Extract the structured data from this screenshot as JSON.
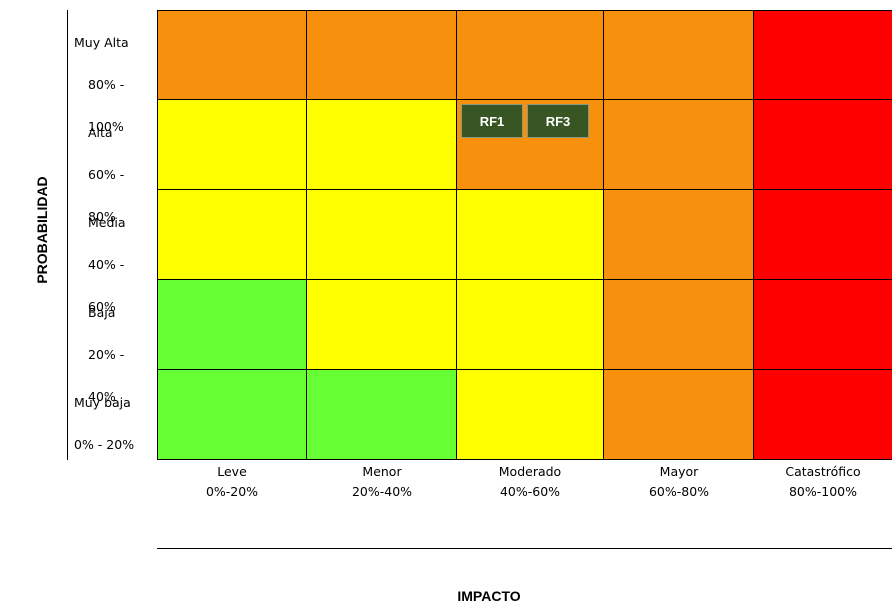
{
  "colors": {
    "green": "#66ff33",
    "yellow": "#ffff00",
    "orange": "#f7900d",
    "red": "#ff0000",
    "tag_bg": "#375623"
  },
  "axes": {
    "y_title": "PROBABILIDAD",
    "x_title": "IMPACTO"
  },
  "rows": [
    {
      "name": "Muy Alta",
      "range": "80% -",
      "range2": "100%"
    },
    {
      "name": "Alta",
      "range": "60% -",
      "range2": "80%"
    },
    {
      "name": "Media",
      "range": "40% -",
      "range2": "60%"
    },
    {
      "name": "Baja",
      "range": "20% -",
      "range2": "40%"
    },
    {
      "name": "Muy baja",
      "range": "0% - 20%",
      "range2": ""
    }
  ],
  "columns": [
    {
      "name": "Leve",
      "range": "0%-20%"
    },
    {
      "name": "Menor",
      "range": "20%-40%"
    },
    {
      "name": "Moderado",
      "range": "40%-60%"
    },
    {
      "name": "Mayor",
      "range": "60%-80%"
    },
    {
      "name": "Catastrófico",
      "range": "80%-100%"
    }
  ],
  "matrix": [
    [
      "orange",
      "orange",
      "orange",
      "orange",
      "red"
    ],
    [
      "yellow",
      "yellow",
      "orange",
      "orange",
      "red"
    ],
    [
      "yellow",
      "yellow",
      "yellow",
      "orange",
      "red"
    ],
    [
      "green",
      "yellow",
      "yellow",
      "orange",
      "red"
    ],
    [
      "green",
      "green",
      "yellow",
      "orange",
      "red"
    ]
  ],
  "risks": [
    {
      "label": "RF1",
      "row": 1,
      "col": 2
    },
    {
      "label": "RF3",
      "row": 1,
      "col": 2
    }
  ]
}
